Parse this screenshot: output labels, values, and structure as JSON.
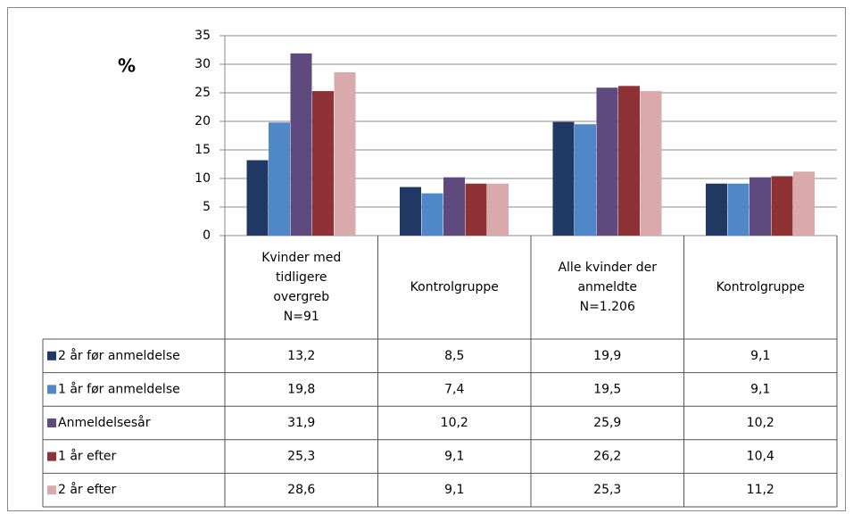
{
  "chart_data": {
    "type": "bar",
    "y_label": "%",
    "categories": [
      [
        "Kvinder med",
        "tidligere",
        "overgreb",
        "N=91"
      ],
      [
        "Kontrolgruppe"
      ],
      [
        "Alle kvinder der",
        "anmeldte",
        "N=1.206"
      ],
      [
        "Kontrolgruppe"
      ]
    ],
    "series": [
      {
        "name": "2 år før anmeldelse",
        "color": "#1f3864",
        "values": [
          13.2,
          8.5,
          19.9,
          9.1
        ],
        "value_labels": [
          "13,2",
          "8,5",
          "19,9",
          "9,1"
        ]
      },
      {
        "name": "1 år før anmeldelse",
        "color": "#4f87c9",
        "values": [
          19.8,
          7.4,
          19.5,
          9.1
        ],
        "value_labels": [
          "19,8",
          "7,4",
          "19,5",
          "9,1"
        ]
      },
      {
        "name": "Anmeldelsesår",
        "color": "#5f4a80",
        "values": [
          31.9,
          10.2,
          25.9,
          10.2
        ],
        "value_labels": [
          "31,9",
          "10,2",
          "25,9",
          "10,2"
        ]
      },
      {
        "name": "1 år efter",
        "color": "#8e3236",
        "values": [
          25.3,
          9.1,
          26.2,
          10.4
        ],
        "value_labels": [
          "25,3",
          "9,1",
          "26,2",
          "10,4"
        ]
      },
      {
        "name": "2 år efter",
        "color": "#d9a9ab",
        "values": [
          28.6,
          9.1,
          25.3,
          11.2
        ],
        "value_labels": [
          "28,6",
          "9,1",
          "25,3",
          "11,2"
        ]
      }
    ],
    "ylim": [
      0,
      35
    ],
    "yticks": [
      0,
      5,
      10,
      15,
      20,
      25,
      30,
      35
    ],
    "grid": true
  }
}
